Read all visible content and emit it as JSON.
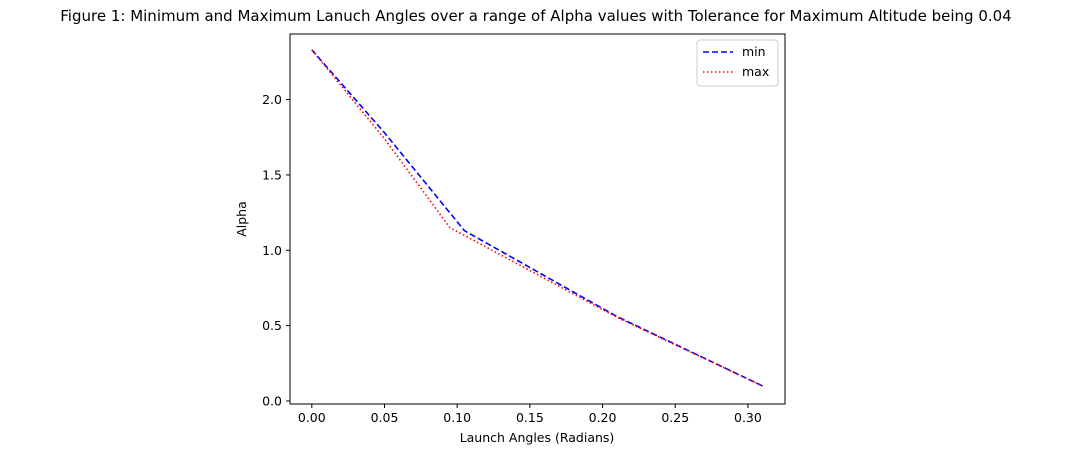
{
  "chart_data": {
    "type": "line",
    "title": "Figure 1: Minimum and Maximum Lanuch Angles over a range of Alpha values with Tolerance for Maximum Altitude being 0.04",
    "xlabel": "Launch Angles (Radians)",
    "ylabel": "Alpha",
    "xlim": [
      -0.015,
      0.3255
    ],
    "ylim": [
      -0.02,
      2.435
    ],
    "xticks": [
      "0.00",
      "0.05",
      "0.10",
      "0.15",
      "0.20",
      "0.25",
      "0.30"
    ],
    "yticks": [
      "0.0",
      "0.5",
      "1.0",
      "1.5",
      "2.0"
    ],
    "grid": false,
    "legend_position": "top-right",
    "series": [
      {
        "name": "min",
        "color": "#0000ff",
        "style": "dashed",
        "x": [
          0.0,
          0.05,
          0.105,
          0.21,
          0.31
        ],
        "y": [
          2.33,
          1.78,
          1.13,
          0.56,
          0.1
        ]
      },
      {
        "name": "max",
        "color": "#ff0000",
        "style": "dotted",
        "x": [
          0.0,
          0.05,
          0.095,
          0.21,
          0.31
        ],
        "y": [
          2.33,
          1.74,
          1.15,
          0.555,
          0.1
        ]
      }
    ]
  }
}
